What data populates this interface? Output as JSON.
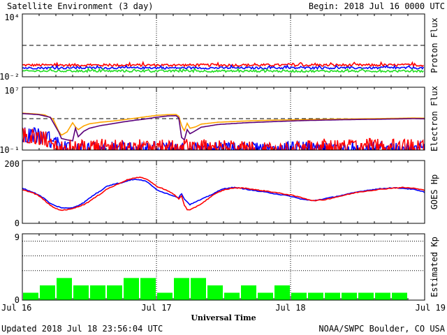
{
  "header": {
    "title": "Satellite Environment (3 day)",
    "begin": "Begin:  2018 Jul 16 0000 UTC"
  },
  "footer": {
    "updated": "Updated 2018 Jul 18 23:56:04 UTC",
    "credit": "NOAA/SWPC Boulder, CO USA",
    "xlabel": "Universal Time"
  },
  "x_ticks": [
    "Jul 16",
    "Jul 17",
    "Jul 18",
    "Jul 19"
  ],
  "colors": {
    "red": "#ff0000",
    "blue": "#0000ff",
    "green": "#22dd22",
    "orange": "#ffa500",
    "purple": "#5a007a",
    "kp_bar": "#00ff00"
  },
  "chart_data": [
    {
      "type": "line",
      "ylabel": "Proton Flux",
      "log_scale": true,
      "ylim": [
        0.01,
        10000
      ],
      "y_ticks": {
        "top": "10⁴",
        "bottom": "10⁻²"
      },
      "threshold": 10,
      "x_range_hours": [
        0,
        72
      ],
      "series": [
        {
          "color": "red",
          "level": 0.13,
          "noise": 0.12
        },
        {
          "color": "blue",
          "level": 0.07,
          "noise": 0.1
        },
        {
          "color": "green",
          "level": 0.035,
          "noise": 0.1
        }
      ]
    },
    {
      "type": "line",
      "ylabel": "Electron Flux",
      "log_scale": true,
      "ylim": [
        0.1,
        10000000
      ],
      "y_ticks": {
        "top": "10⁷",
        "bottom": "10⁻¹"
      },
      "threshold": 1000,
      "x_range_hours": [
        0,
        72
      ],
      "series": [
        {
          "color": "orange",
          "points": [
            [
              0,
              5000
            ],
            [
              2,
              4200
            ],
            [
              4,
              3000
            ],
            [
              5.5,
              900
            ],
            [
              6.5,
              25
            ],
            [
              7,
              8
            ],
            [
              8,
              20
            ],
            [
              9,
              300
            ],
            [
              9.5,
              90
            ],
            [
              10,
              40
            ],
            [
              11,
              120
            ],
            [
              12,
              220
            ],
            [
              14,
              350
            ],
            [
              16,
              480
            ],
            [
              18,
              700
            ],
            [
              20,
              1100
            ],
            [
              22,
              1700
            ],
            [
              24,
              2600
            ],
            [
              26,
              3200
            ],
            [
              27.5,
              3400
            ],
            [
              28,
              2000
            ],
            [
              28.6,
              80
            ],
            [
              29,
              30
            ],
            [
              29.5,
              260
            ],
            [
              30,
              60
            ],
            [
              31,
              90
            ],
            [
              32,
              200
            ],
            [
              35,
              350
            ],
            [
              40,
              500
            ],
            [
              45,
              650
            ],
            [
              50,
              750
            ],
            [
              55,
              850
            ],
            [
              60,
              950
            ],
            [
              65,
              1050
            ],
            [
              70,
              1200
            ],
            [
              72,
              1150
            ]
          ]
        },
        {
          "color": "purple",
          "points": [
            [
              0,
              4500
            ],
            [
              3,
              3200
            ],
            [
              5,
              1500
            ],
            [
              6.5,
              20
            ],
            [
              7,
              3
            ],
            [
              8,
              2
            ],
            [
              9,
              1.5
            ],
            [
              9.5,
              60
            ],
            [
              10,
              5
            ],
            [
              11,
              25
            ],
            [
              12,
              60
            ],
            [
              14,
              130
            ],
            [
              16,
              220
            ],
            [
              18,
              380
            ],
            [
              20,
              600
            ],
            [
              22,
              900
            ],
            [
              24,
              1500
            ],
            [
              26,
              2200
            ],
            [
              27.5,
              2400
            ],
            [
              28,
              1200
            ],
            [
              28.5,
              4
            ],
            [
              29,
              2
            ],
            [
              29.5,
              40
            ],
            [
              30,
              12
            ],
            [
              31,
              30
            ],
            [
              32,
              80
            ],
            [
              35,
              180
            ],
            [
              40,
              300
            ],
            [
              45,
              420
            ],
            [
              50,
              560
            ],
            [
              55,
              680
            ],
            [
              60,
              780
            ],
            [
              65,
              870
            ],
            [
              70,
              1000
            ],
            [
              72,
              950
            ]
          ]
        },
        {
          "color": "blue",
          "points": [
            [
              0,
              25
            ],
            [
              2,
              20
            ],
            [
              4,
              12
            ],
            [
              6,
              2
            ],
            [
              8,
              0.4
            ],
            [
              10,
              0.3
            ],
            [
              12,
              0.3
            ],
            [
              16,
              0.3
            ],
            [
              20,
              0.3
            ],
            [
              24,
              0.3
            ],
            [
              28,
              0.3
            ],
            [
              32,
              0.3
            ],
            [
              36,
              0.25
            ],
            [
              40,
              0.25
            ],
            [
              46,
              0.3
            ],
            [
              50,
              0.3
            ],
            [
              54,
              0.3
            ],
            [
              58,
              0.3
            ],
            [
              62,
              0.3
            ],
            [
              66,
              0.3
            ],
            [
              70,
              0.3
            ],
            [
              72,
              0.3
            ]
          ],
          "noisy": true
        },
        {
          "color": "red",
          "points": [
            [
              0,
              20
            ],
            [
              2,
              15
            ],
            [
              4,
              8
            ],
            [
              6,
              1.5
            ],
            [
              8,
              0.5
            ],
            [
              10,
              0.6
            ],
            [
              14,
              0.7
            ],
            [
              18,
              0.8
            ],
            [
              22,
              0.6
            ],
            [
              26,
              0.5
            ],
            [
              30,
              0.7
            ],
            [
              34,
              0.6
            ],
            [
              38,
              0.4
            ],
            [
              42,
              0.25
            ],
            [
              46,
              0.2
            ],
            [
              50,
              0.5
            ],
            [
              54,
              0.7
            ],
            [
              58,
              0.8
            ],
            [
              62,
              0.8
            ],
            [
              66,
              0.7
            ],
            [
              70,
              0.7
            ],
            [
              72,
              0.6
            ]
          ],
          "noisy": true
        }
      ]
    },
    {
      "type": "line",
      "ylabel": "GOES Hp",
      "ylim": [
        0,
        200
      ],
      "y_ticks": [
        0,
        200
      ],
      "x_range_hours": [
        0,
        72
      ],
      "series": [
        {
          "color": "blue",
          "points": [
            [
              0,
              112
            ],
            [
              1,
              105
            ],
            [
              2,
              98
            ],
            [
              3,
              90
            ],
            [
              4,
              78
            ],
            [
              5,
              63
            ],
            [
              6,
              55
            ],
            [
              7,
              50
            ],
            [
              8,
              48
            ],
            [
              9,
              50
            ],
            [
              10,
              57
            ],
            [
              11,
              66
            ],
            [
              12,
              80
            ],
            [
              13,
              93
            ],
            [
              14,
              103
            ],
            [
              15,
              118
            ],
            [
              16,
              123
            ],
            [
              17,
              127
            ],
            [
              18,
              130
            ],
            [
              19,
              137
            ],
            [
              20,
              140
            ],
            [
              21,
              138
            ],
            [
              22,
              136
            ],
            [
              23,
              122
            ],
            [
              24,
              108
            ],
            [
              25,
              100
            ],
            [
              26,
              94
            ],
            [
              27,
              88
            ],
            [
              28,
              82
            ],
            [
              28.5,
              95
            ],
            [
              29,
              78
            ],
            [
              29.5,
              68
            ],
            [
              30,
              60
            ],
            [
              31,
              68
            ],
            [
              32,
              76
            ],
            [
              33,
              84
            ],
            [
              34,
              93
            ],
            [
              35,
              102
            ],
            [
              36,
              110
            ],
            [
              37,
              113
            ],
            [
              38,
              114
            ],
            [
              40,
              109
            ],
            [
              42,
              103
            ],
            [
              44,
              98
            ],
            [
              46,
              92
            ],
            [
              48,
              86
            ],
            [
              50,
              77
            ],
            [
              52,
              72
            ],
            [
              54,
              78
            ],
            [
              56,
              85
            ],
            [
              58,
              92
            ],
            [
              60,
              100
            ],
            [
              62,
              106
            ],
            [
              64,
              110
            ],
            [
              66,
              113
            ],
            [
              68,
              112
            ],
            [
              70,
              108
            ],
            [
              72,
              99
            ]
          ]
        },
        {
          "color": "red",
          "points": [
            [
              0,
              107
            ],
            [
              1,
              102
            ],
            [
              2,
              96
            ],
            [
              3,
              87
            ],
            [
              4,
              73
            ],
            [
              5,
              57
            ],
            [
              6,
              47
            ],
            [
              7,
              42
            ],
            [
              8,
              43
            ],
            [
              9,
              48
            ],
            [
              10,
              53
            ],
            [
              11,
              60
            ],
            [
              12,
              70
            ],
            [
              13,
              82
            ],
            [
              14,
              94
            ],
            [
              15,
              108
            ],
            [
              16,
              116
            ],
            [
              17,
              124
            ],
            [
              18,
              133
            ],
            [
              19,
              140
            ],
            [
              20,
              144
            ],
            [
              21,
              146
            ],
            [
              22,
              143
            ],
            [
              23,
              132
            ],
            [
              24,
              118
            ],
            [
              25,
              112
            ],
            [
              26,
              103
            ],
            [
              27,
              94
            ],
            [
              28,
              78
            ],
            [
              28.5,
              88
            ],
            [
              29,
              58
            ],
            [
              29.5,
              43
            ],
            [
              30,
              42
            ],
            [
              31,
              52
            ],
            [
              32,
              62
            ],
            [
              33,
              75
            ],
            [
              34,
              88
            ],
            [
              35,
              98
            ],
            [
              36,
              106
            ],
            [
              37,
              110
            ],
            [
              38,
              113
            ],
            [
              40,
              112
            ],
            [
              42,
              106
            ],
            [
              44,
              102
            ],
            [
              46,
              96
            ],
            [
              48,
              90
            ],
            [
              50,
              82
            ],
            [
              52,
              72
            ],
            [
              54,
              75
            ],
            [
              56,
              83
            ],
            [
              58,
              91
            ],
            [
              60,
              99
            ],
            [
              62,
              104
            ],
            [
              64,
              108
            ],
            [
              66,
              112
            ],
            [
              68,
              114
            ],
            [
              70,
              112
            ],
            [
              72,
              105
            ]
          ]
        }
      ]
    },
    {
      "type": "bar",
      "ylabel": "Estimated Kp",
      "ylim": [
        0,
        9
      ],
      "y_ticks": [
        0,
        9
      ],
      "gridlines": [
        4,
        6,
        8
      ],
      "x_range_hours": [
        0,
        72
      ],
      "bar_width_hours": 3,
      "values": [
        1,
        2,
        3,
        2,
        2,
        2,
        3,
        3,
        1,
        3,
        3,
        2,
        1,
        2,
        1,
        2,
        1,
        1,
        1,
        1,
        1,
        1,
        1,
        0
      ]
    }
  ]
}
